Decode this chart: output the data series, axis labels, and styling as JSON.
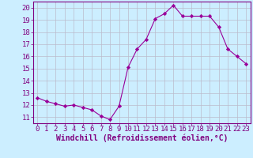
{
  "x": [
    0,
    1,
    2,
    3,
    4,
    5,
    6,
    7,
    8,
    9,
    10,
    11,
    12,
    13,
    14,
    15,
    16,
    17,
    18,
    19,
    20,
    21,
    22,
    23
  ],
  "y": [
    12.6,
    12.3,
    12.1,
    11.9,
    12.0,
    11.8,
    11.6,
    11.1,
    10.8,
    11.9,
    15.1,
    16.6,
    17.4,
    19.1,
    19.5,
    20.2,
    19.3,
    19.3,
    19.3,
    19.3,
    18.4,
    16.6,
    16.0,
    15.4
  ],
  "line_color": "#990099",
  "marker": "D",
  "marker_size": 2.2,
  "xlabel": "Windchill (Refroidissement éolien,°C)",
  "xlim": [
    -0.5,
    23.5
  ],
  "ylim": [
    10.5,
    20.5
  ],
  "yticks": [
    11,
    12,
    13,
    14,
    15,
    16,
    17,
    18,
    19,
    20
  ],
  "xticks": [
    0,
    1,
    2,
    3,
    4,
    5,
    6,
    7,
    8,
    9,
    10,
    11,
    12,
    13,
    14,
    15,
    16,
    17,
    18,
    19,
    20,
    21,
    22,
    23
  ],
  "bg_color": "#cceeff",
  "grid_color": "#bbbbcc",
  "tick_color": "#800080",
  "label_color": "#800080",
  "spine_color": "#800080",
  "font_size": 6.5,
  "xlabel_font_size": 7.0
}
